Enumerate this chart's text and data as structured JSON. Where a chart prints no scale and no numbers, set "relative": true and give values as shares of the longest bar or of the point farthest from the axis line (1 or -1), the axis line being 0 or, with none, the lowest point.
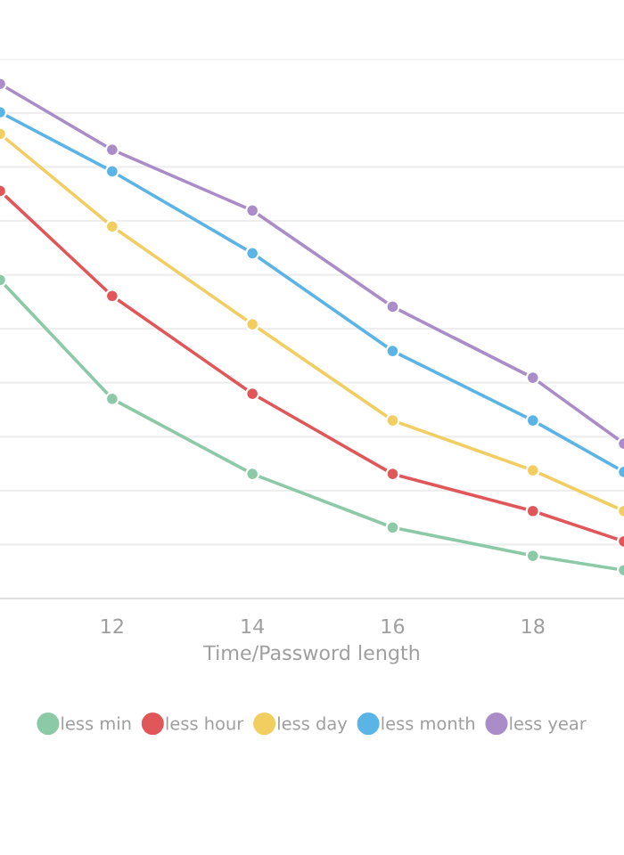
{
  "chart_data": {
    "type": "line",
    "xlabel": "Time/Password length",
    "relative": true,
    "xlim": [
      10.4,
      19.3
    ],
    "xticks": [
      12,
      14,
      16,
      18
    ],
    "x": [
      10.4,
      12,
      14,
      16,
      18,
      19.3
    ],
    "series": [
      {
        "name": "less min",
        "color": "#8cc9a6",
        "values": [
          0.619,
          0.388,
          0.242,
          0.138,
          0.083,
          0.055
        ]
      },
      {
        "name": "less hour",
        "color": "#e15759",
        "values": [
          0.792,
          0.588,
          0.398,
          0.242,
          0.17,
          0.111
        ]
      },
      {
        "name": "less day",
        "color": "#f2cd60",
        "values": [
          0.903,
          0.723,
          0.533,
          0.346,
          0.249,
          0.17
        ]
      },
      {
        "name": "less month",
        "color": "#5ab4e5",
        "values": [
          0.945,
          0.83,
          0.671,
          0.481,
          0.346,
          0.246
        ]
      },
      {
        "name": "less year",
        "color": "#a98cc8",
        "values": [
          1,
          0.872,
          0.754,
          0.567,
          0.429,
          0.301
        ]
      }
    ],
    "grid": "y",
    "legend": "bottom",
    "marker": "circle",
    "line_style": "solid"
  }
}
